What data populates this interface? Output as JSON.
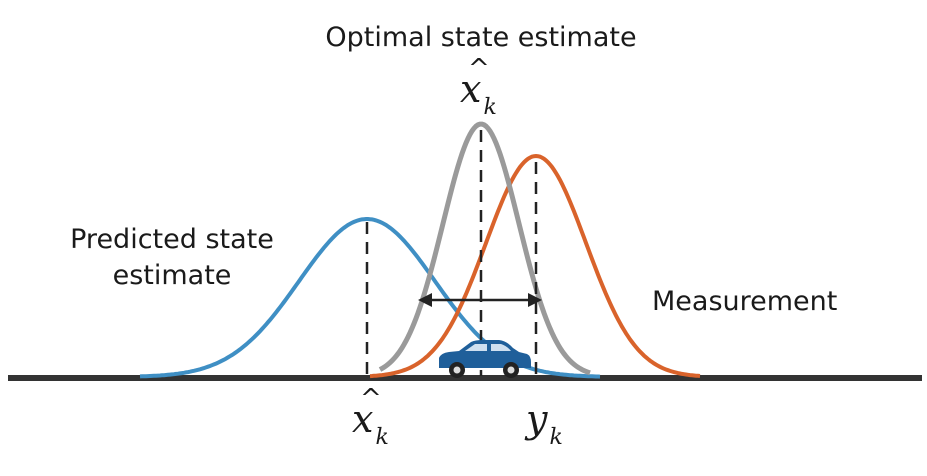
{
  "labels": {
    "optimal": "Optimal state estimate",
    "predicted_line1": "Predicted state",
    "predicted_line2": "estimate",
    "measurement": "Measurement"
  },
  "math": {
    "x_symbol": "x",
    "y_symbol": "y",
    "subscript": "k",
    "hat": "^"
  },
  "colors": {
    "predicted": "#3f8fc4",
    "measurement": "#d9632b",
    "optimal": "#9a9a9a",
    "axis": "#333333",
    "car_body": "#1f5f9a",
    "car_window": "#cfe0f0"
  },
  "icons": {
    "vehicle": "car-icon"
  }
}
